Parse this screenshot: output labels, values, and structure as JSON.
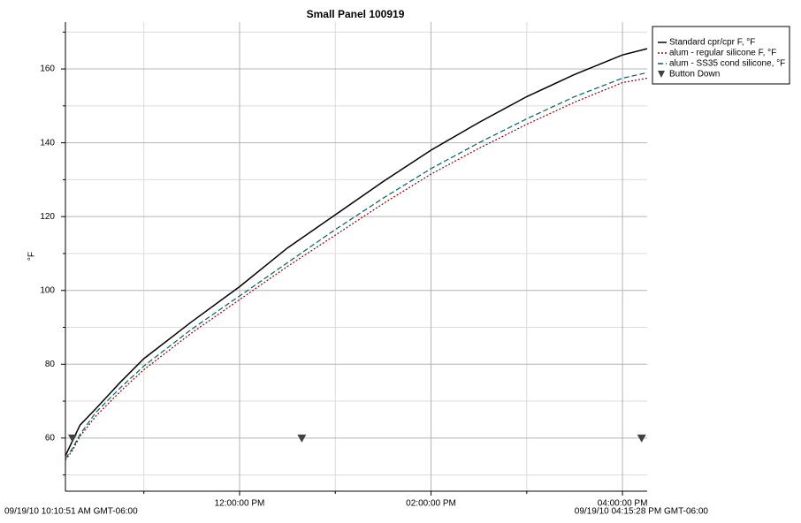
{
  "chart_data": {
    "type": "line",
    "title": "Small Panel 100919",
    "y_label": "°F",
    "start_label": "09/19/10 10:10:51 AM GMT-06:00",
    "end_label": "09/19/10 04:15:28 PM GMT-06:00",
    "x": [
      "10:10:51 AM",
      "10:15:00 AM",
      "10:20:00 AM",
      "10:30:00 AM",
      "10:45:00 AM",
      "11:00:00 AM",
      "11:30:00 AM",
      "12:00:00 PM",
      "12:30:00 PM",
      "01:00:00 PM",
      "01:30:00 PM",
      "02:00:00 PM",
      "02:30:00 PM",
      "03:00:00 PM",
      "03:30:00 PM",
      "04:00:00 PM",
      "04:15:28 PM"
    ],
    "series": [
      {
        "name": "Standard cpr/cpr F, °F",
        "color": "#000000",
        "dash": "none",
        "values": [
          55.2,
          59,
          63.5,
          68,
          75,
          81.5,
          91.5,
          101,
          111.5,
          120.5,
          129.5,
          138,
          145.5,
          152.5,
          158.5,
          163.8,
          165.5
        ]
      },
      {
        "name": "alum - regular silicone F, °F",
        "color": "#8b0000",
        "dash": "2,2",
        "values": [
          54,
          56.5,
          60.5,
          66,
          72.5,
          78.5,
          88.5,
          97.5,
          106.5,
          115,
          123.5,
          131.5,
          138.5,
          145,
          151,
          156.3,
          157.5
        ]
      },
      {
        "name": "alum - SS35 cond silicone, °F",
        "color": "#006060",
        "dash": "6,3",
        "values": [
          54.5,
          57,
          61,
          67,
          73.5,
          79.5,
          89.5,
          98.5,
          107.5,
          116.5,
          125,
          133,
          140,
          146.5,
          152.5,
          157.5,
          159
        ]
      }
    ],
    "markers": {
      "name": "Button Down",
      "color": "#404040",
      "x": [
        "10:15:16 AM",
        "12:39:00 PM",
        "04:12:00 PM"
      ],
      "values": [
        60,
        60,
        60
      ]
    },
    "xlim": [
      "10:10:51 AM",
      "04:15:28 PM"
    ],
    "xticks": [
      "12:00:00 PM",
      "02:00:00 PM",
      "04:00:00 PM"
    ],
    "xgrid_minor": [
      "11:00:00 AM",
      "01:00:00 PM",
      "03:00:00 PM"
    ],
    "ylim": [
      45.6,
      172.7
    ],
    "yticks": [
      60,
      80,
      100,
      120,
      140,
      160
    ],
    "ygrid_minor": [
      50,
      70,
      90,
      110,
      130,
      150,
      170
    ],
    "grid": true,
    "legend": "top-right-outside"
  }
}
